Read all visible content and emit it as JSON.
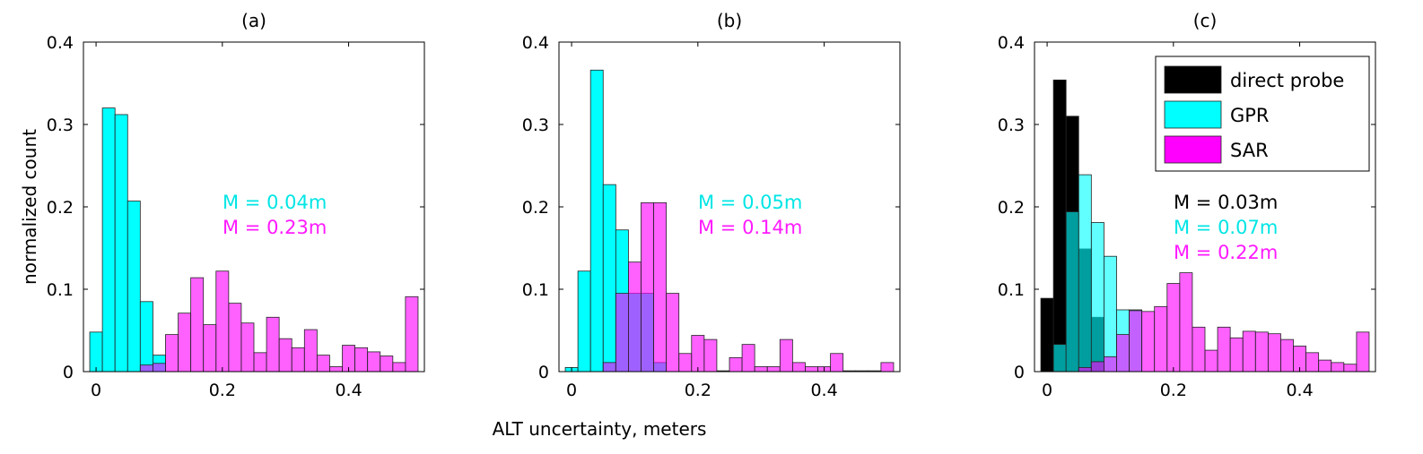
{
  "figure": {
    "xlabel": "ALT uncertainty, meters",
    "ylabel": "normalized count"
  },
  "colors": {
    "direct_probe": "#000000",
    "gpr": "#00ffff",
    "sar": "#ff00ff",
    "gpr_text": "#00e5e5",
    "sar_text": "#ff1aff",
    "black_text": "#000000"
  },
  "legend": {
    "entries": [
      {
        "label": "direct probe",
        "series": "direct_probe"
      },
      {
        "label": "GPR",
        "series": "gpr"
      },
      {
        "label": "SAR",
        "series": "sar"
      }
    ]
  },
  "chart_data": [
    {
      "type": "bar",
      "title": "(a)",
      "xlabel": "",
      "ylabel": "normalized count",
      "xlim": [
        -0.02,
        0.52
      ],
      "ylim": [
        0,
        0.4
      ],
      "xticks": [
        0,
        0.2,
        0.4
      ],
      "xtick_labels": [
        "0",
        "0.2",
        "0.4"
      ],
      "yticks": [
        0,
        0.1,
        0.2,
        0.3,
        0.4
      ],
      "ytick_labels": [
        "0",
        "0.1",
        "0.2",
        "0.3",
        "0.4"
      ],
      "bin_width": 0.02,
      "series": [
        {
          "name": "GPR",
          "color_key": "gpr",
          "x": [
            0,
            0.02,
            0.04,
            0.06,
            0.08,
            0.1
          ],
          "values": [
            0.048,
            0.32,
            0.312,
            0.207,
            0.085,
            0.02
          ]
        },
        {
          "name": "SAR",
          "color_key": "sar",
          "x": [
            0.08,
            0.1,
            0.12,
            0.14,
            0.16,
            0.18,
            0.2,
            0.22,
            0.24,
            0.26,
            0.28,
            0.3,
            0.32,
            0.34,
            0.36,
            0.38,
            0.4,
            0.42,
            0.44,
            0.46,
            0.48,
            0.5
          ],
          "values": [
            0.008,
            0.01,
            0.045,
            0.071,
            0.114,
            0.057,
            0.122,
            0.083,
            0.059,
            0.023,
            0.066,
            0.04,
            0.029,
            0.051,
            0.02,
            0.006,
            0.032,
            0.029,
            0.024,
            0.019,
            0.011,
            0.091
          ]
        }
      ],
      "annotations": [
        {
          "text": "M = 0.04m",
          "color_key": "gpr_text"
        },
        {
          "text": "M = 0.23m",
          "color_key": "sar_text"
        }
      ]
    },
    {
      "type": "bar",
      "title": "(b)",
      "xlabel": "ALT uncertainty, meters",
      "ylabel": "",
      "xlim": [
        -0.02,
        0.52
      ],
      "ylim": [
        0,
        0.4
      ],
      "xticks": [
        0,
        0.2,
        0.4
      ],
      "xtick_labels": [
        "0",
        "0.2",
        "0.4"
      ],
      "yticks": [
        0,
        0.1,
        0.2,
        0.3,
        0.4
      ],
      "ytick_labels": [
        "0",
        "0.1",
        "0.2",
        "0.3",
        "0.4"
      ],
      "bin_width": 0.02,
      "series": [
        {
          "name": "GPR",
          "color_key": "gpr",
          "x": [
            0,
            0.02,
            0.04,
            0.06,
            0.08,
            0.1,
            0.12,
            0.14
          ],
          "values": [
            0.005,
            0.122,
            0.366,
            0.227,
            0.172,
            0.095,
            0.095,
            0.011
          ]
        },
        {
          "name": "SAR",
          "color_key": "sar",
          "x": [
            0.06,
            0.08,
            0.1,
            0.12,
            0.14,
            0.16,
            0.18,
            0.2,
            0.22,
            0.24,
            0.26,
            0.28,
            0.3,
            0.32,
            0.34,
            0.36,
            0.38,
            0.4,
            0.42,
            0.44,
            0.46,
            0.48,
            0.5
          ],
          "values": [
            0.011,
            0.095,
            0.133,
            0.205,
            0.205,
            0.095,
            0.022,
            0.044,
            0.039,
            0.001,
            0.017,
            0.033,
            0.006,
            0.006,
            0.039,
            0.011,
            0.006,
            0.006,
            0.022,
            0.001,
            0.001,
            0.001,
            0.011
          ]
        }
      ],
      "annotations": [
        {
          "text": "M = 0.05m",
          "color_key": "gpr_text"
        },
        {
          "text": "M = 0.14m",
          "color_key": "sar_text"
        }
      ]
    },
    {
      "type": "bar",
      "title": "(c)",
      "xlabel": "",
      "ylabel": "",
      "xlim": [
        -0.02,
        0.52
      ],
      "ylim": [
        0,
        0.4
      ],
      "xticks": [
        0,
        0.2,
        0.4
      ],
      "xtick_labels": [
        "0",
        "0.2",
        "0.4"
      ],
      "yticks": [
        0,
        0.1,
        0.2,
        0.3,
        0.4
      ],
      "ytick_labels": [
        "0",
        "0.1",
        "0.2",
        "0.3",
        "0.4"
      ],
      "bin_width": 0.02,
      "legend_position": "top-right",
      "series": [
        {
          "name": "direct probe",
          "color_key": "direct_probe",
          "x": [
            0,
            0.02,
            0.04,
            0.06,
            0.08
          ],
          "values": [
            0.089,
            0.354,
            0.31,
            0.149,
            0.066
          ]
        },
        {
          "name": "GPR",
          "color_key": "gpr",
          "x": [
            0.02,
            0.04,
            0.06,
            0.08,
            0.1,
            0.12,
            0.14
          ],
          "values": [
            0.033,
            0.194,
            0.239,
            0.181,
            0.14,
            0.075,
            0.075
          ]
        },
        {
          "name": "SAR",
          "color_key": "sar",
          "x": [
            0.06,
            0.08,
            0.1,
            0.12,
            0.14,
            0.16,
            0.18,
            0.2,
            0.22,
            0.24,
            0.26,
            0.28,
            0.3,
            0.32,
            0.34,
            0.36,
            0.38,
            0.4,
            0.42,
            0.44,
            0.46,
            0.48,
            0.5
          ],
          "values": [
            0.005,
            0.012,
            0.018,
            0.045,
            0.074,
            0.073,
            0.079,
            0.107,
            0.12,
            0.054,
            0.026,
            0.054,
            0.041,
            0.049,
            0.048,
            0.046,
            0.039,
            0.031,
            0.023,
            0.014,
            0.011,
            0.009,
            0.048
          ]
        }
      ],
      "annotations": [
        {
          "text": "M = 0.03m",
          "color_key": "black_text"
        },
        {
          "text": "M = 0.07m",
          "color_key": "gpr_text"
        },
        {
          "text": "M = 0.22m",
          "color_key": "sar_text"
        }
      ]
    }
  ]
}
